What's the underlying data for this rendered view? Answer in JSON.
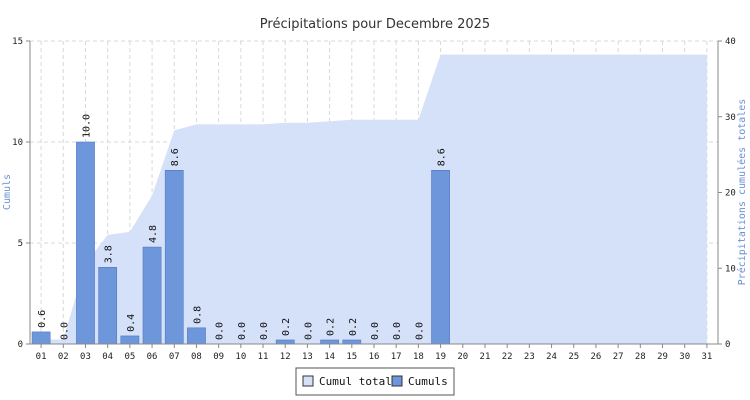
{
  "chart_data": {
    "type": "bar",
    "title": "Précipitations pour Decembre 2025",
    "ylabel": "Cumuls",
    "y2label": "Précipitations cumulées totales",
    "ylim": [
      0,
      15
    ],
    "y2lim": [
      0,
      40
    ],
    "yticks": [
      "0",
      "5",
      "10",
      "15"
    ],
    "y2ticks": [
      "0",
      "10",
      "20",
      "30",
      "40"
    ],
    "grid": true,
    "legend_position": "bottom-center",
    "categories": [
      "01",
      "02",
      "03",
      "04",
      "05",
      "06",
      "07",
      "08",
      "09",
      "10",
      "11",
      "12",
      "13",
      "14",
      "15",
      "16",
      "17",
      "18",
      "19",
      "20",
      "21",
      "22",
      "23",
      "24",
      "25",
      "26",
      "27",
      "28",
      "29",
      "30",
      "31"
    ],
    "series": [
      {
        "name": "Cumuls",
        "type": "bar",
        "axis": "left",
        "values": [
          0.6,
          0.0,
          10.0,
          3.8,
          0.4,
          4.8,
          8.6,
          0.8,
          0.0,
          0.0,
          0.0,
          0.2,
          0.0,
          0.2,
          0.2,
          0.0,
          0.0,
          0.0,
          8.6,
          null,
          null,
          null,
          null,
          null,
          null,
          null,
          null,
          null,
          null,
          null,
          null
        ],
        "labels": [
          "0.6",
          "0.0",
          "10.0",
          "3.8",
          "0.4",
          "4.8",
          "8.6",
          "0.8",
          "0.0",
          "0.0",
          "0.0",
          "0.2",
          "0.0",
          "0.2",
          "0.2",
          "0.0",
          "0.0",
          "0.0",
          "8.6",
          "",
          "",
          "",
          "",
          "",
          "",
          "",
          "",
          "",
          "",
          "",
          ""
        ]
      },
      {
        "name": "Cumul total",
        "type": "area",
        "axis": "right",
        "values": [
          0.6,
          0.6,
          10.6,
          14.4,
          14.8,
          19.6,
          28.2,
          29.0,
          29.0,
          29.0,
          29.0,
          29.2,
          29.2,
          29.4,
          29.6,
          29.6,
          29.6,
          29.6,
          38.2,
          38.2,
          38.2,
          38.2,
          38.2,
          38.2,
          38.2,
          38.2,
          38.2,
          38.2,
          38.2,
          38.2,
          38.2
        ]
      }
    ]
  },
  "legend": {
    "items": [
      {
        "label": "Cumul total"
      },
      {
        "label": "Cumuls"
      }
    ]
  },
  "colors": {
    "bar_fill": "#6d96db",
    "bar_stroke": "#4a72c0",
    "area_fill": "#d4e1f9",
    "grid": "#d8d8d8",
    "axis": "#888888",
    "axis_label": "#6a8fd6"
  }
}
